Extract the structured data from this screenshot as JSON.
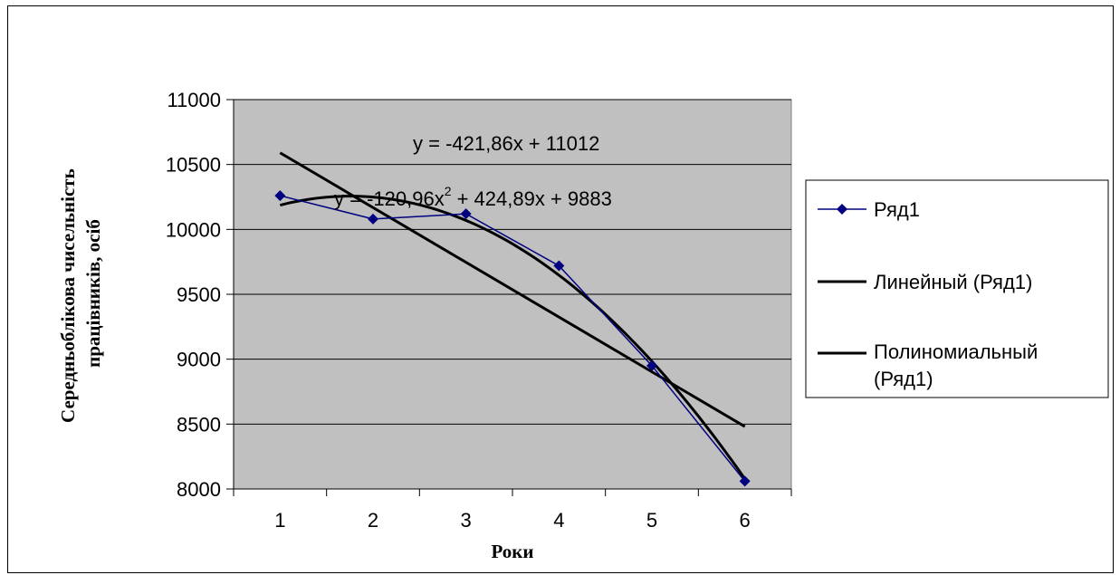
{
  "chart_data": {
    "type": "line",
    "x": [
      1,
      2,
      3,
      4,
      5,
      6
    ],
    "xlabel": "Роки",
    "ylabel": "Середньоблікова чисельність працівників, осіб",
    "ylim": [
      8000,
      11000
    ],
    "yticks": [
      8000,
      8500,
      9000,
      9500,
      10000,
      10500,
      11000
    ],
    "xticks": [
      1,
      2,
      3,
      4,
      5,
      6
    ],
    "grid": true,
    "legend_position": "right",
    "series": [
      {
        "name": "Ряд1",
        "values": [
          10260,
          10080,
          10120,
          9720,
          8950,
          8060
        ],
        "color": "#000080",
        "marker": "diamond"
      }
    ],
    "trendlines": [
      {
        "name": "Линейный (Ряд1)",
        "kind": "linear",
        "coefficients": {
          "slope": -421.86,
          "intercept": 11012
        },
        "equation": "y = -421,86x + 11012"
      },
      {
        "name": "Полиномиальный (Ряд1)",
        "name_lines": [
          "Полиномиальный",
          "(Ряд1)"
        ],
        "kind": "polynomial",
        "coefficients": {
          "a": -120.96,
          "b": 424.89,
          "c": 9883
        },
        "equation_parts": [
          "y = -120,96x",
          "2",
          " + 424,89x + 9883"
        ]
      }
    ],
    "colors": {
      "plot_bg": "#c0c0c0",
      "series": "#000080",
      "trend": "#000000"
    }
  }
}
